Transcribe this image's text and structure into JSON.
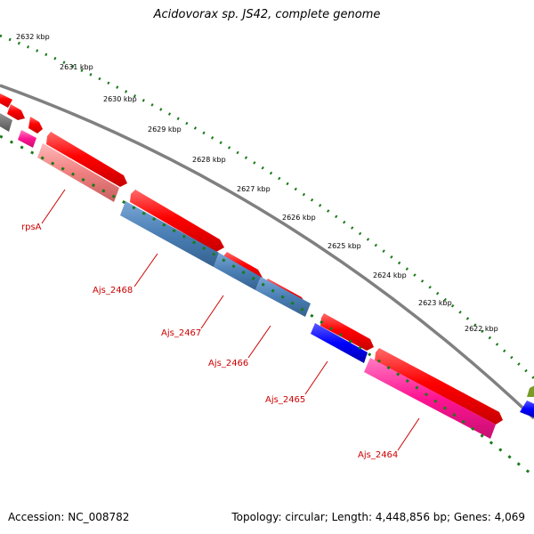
{
  "title": "Acidovorax sp. JS42, complete genome",
  "footer": {
    "accession": "Accession: NC_008782",
    "stats": "Topology: circular; Length: 4,448,856 bp; Genes: 4,069"
  },
  "scale": {
    "ticks": [
      "2632 kbp",
      "2631 kbp",
      "2630 kbp",
      "2629 kbp",
      "2628 kbp",
      "2627 kbp",
      "2626 kbp",
      "2625 kbp",
      "2624 kbp",
      "2623 kbp",
      "2622 kbp"
    ]
  },
  "genes": {
    "labels": [
      "rpsA",
      "Ajs_2468",
      "Ajs_2467",
      "Ajs_2466",
      "Ajs_2465",
      "Ajs_2464"
    ]
  },
  "colors": {
    "forward_cds": "#ff0000",
    "reverse_cds_pink": "#ff1493",
    "reverse_cds_salmon": "#f08080",
    "reverse_cds_steelblue": "#4a7fb5",
    "reverse_cds_blue": "#0000ff",
    "backbone": "#808080",
    "tick_green": "#1a7a1a",
    "label_red": "#cc0000"
  }
}
